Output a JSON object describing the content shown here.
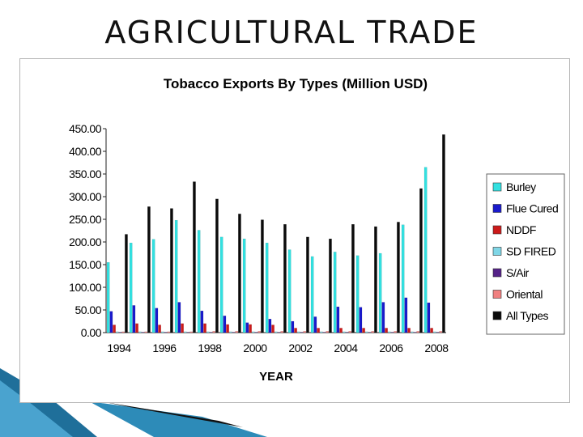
{
  "slide": {
    "title": "AGRICULTURAL TRADE"
  },
  "colors": {
    "Burley": "#33e0e0",
    "Flue Cured": "#1a1acc",
    "NDDF": "#cc1a1a",
    "SD FIRED": "#7fd6e6",
    "S/Air": "#552288",
    "Oriental": "#f08080",
    "All Types": "#0a0a0a"
  },
  "chart_data": {
    "type": "bar",
    "title": "Tobacco Exports By Types (Million USD)",
    "xlabel": "YEAR",
    "ylabel": "",
    "ylim": [
      0,
      450
    ],
    "yticks": [
      "0.00",
      "50.00",
      "100.00",
      "150.00",
      "200.00",
      "250.00",
      "300.00",
      "350.00",
      "400.00",
      "450.00"
    ],
    "categories": [
      "1994",
      "1995",
      "1996",
      "1997",
      "1998",
      "1999",
      "2000",
      "2001",
      "2002",
      "2003",
      "2004",
      "2005",
      "2006",
      "2007",
      "2008"
    ],
    "xtick_labels": [
      "1994",
      "",
      "1996",
      "",
      "1998",
      "",
      "2000",
      "",
      "2002",
      "",
      "2004",
      "",
      "2006",
      "",
      "2008"
    ],
    "legend_position": "right",
    "grid": false,
    "series": [
      {
        "name": "Burley",
        "values": [
          155,
          198,
          206,
          248,
          226,
          211,
          207,
          198,
          183,
          168,
          178,
          170,
          175,
          238,
          365
        ]
      },
      {
        "name": "Flue Cured",
        "values": [
          47,
          60,
          54,
          67,
          48,
          37,
          22,
          30,
          25,
          35,
          57,
          56,
          67,
          77,
          66
        ]
      },
      {
        "name": "NDDF",
        "values": [
          17,
          20,
          17,
          20,
          20,
          18,
          18,
          17,
          10,
          10,
          10,
          10,
          10,
          10,
          10
        ]
      },
      {
        "name": "SD FIRED",
        "values": [
          2,
          2,
          2,
          2,
          2,
          2,
          2,
          2,
          2,
          2,
          2,
          2,
          2,
          2,
          2
        ]
      },
      {
        "name": "S/Air",
        "values": [
          1,
          1,
          1,
          1,
          1,
          1,
          1,
          1,
          1,
          1,
          1,
          1,
          1,
          1,
          1
        ]
      },
      {
        "name": "Oriental",
        "values": [
          2,
          2,
          2,
          2,
          3,
          3,
          3,
          3,
          3,
          3,
          3,
          3,
          3,
          3,
          3
        ]
      },
      {
        "name": "All Types",
        "values": [
          217,
          278,
          274,
          333,
          295,
          262,
          249,
          239,
          211,
          207,
          239,
          234,
          244,
          318,
          437
        ]
      }
    ]
  }
}
